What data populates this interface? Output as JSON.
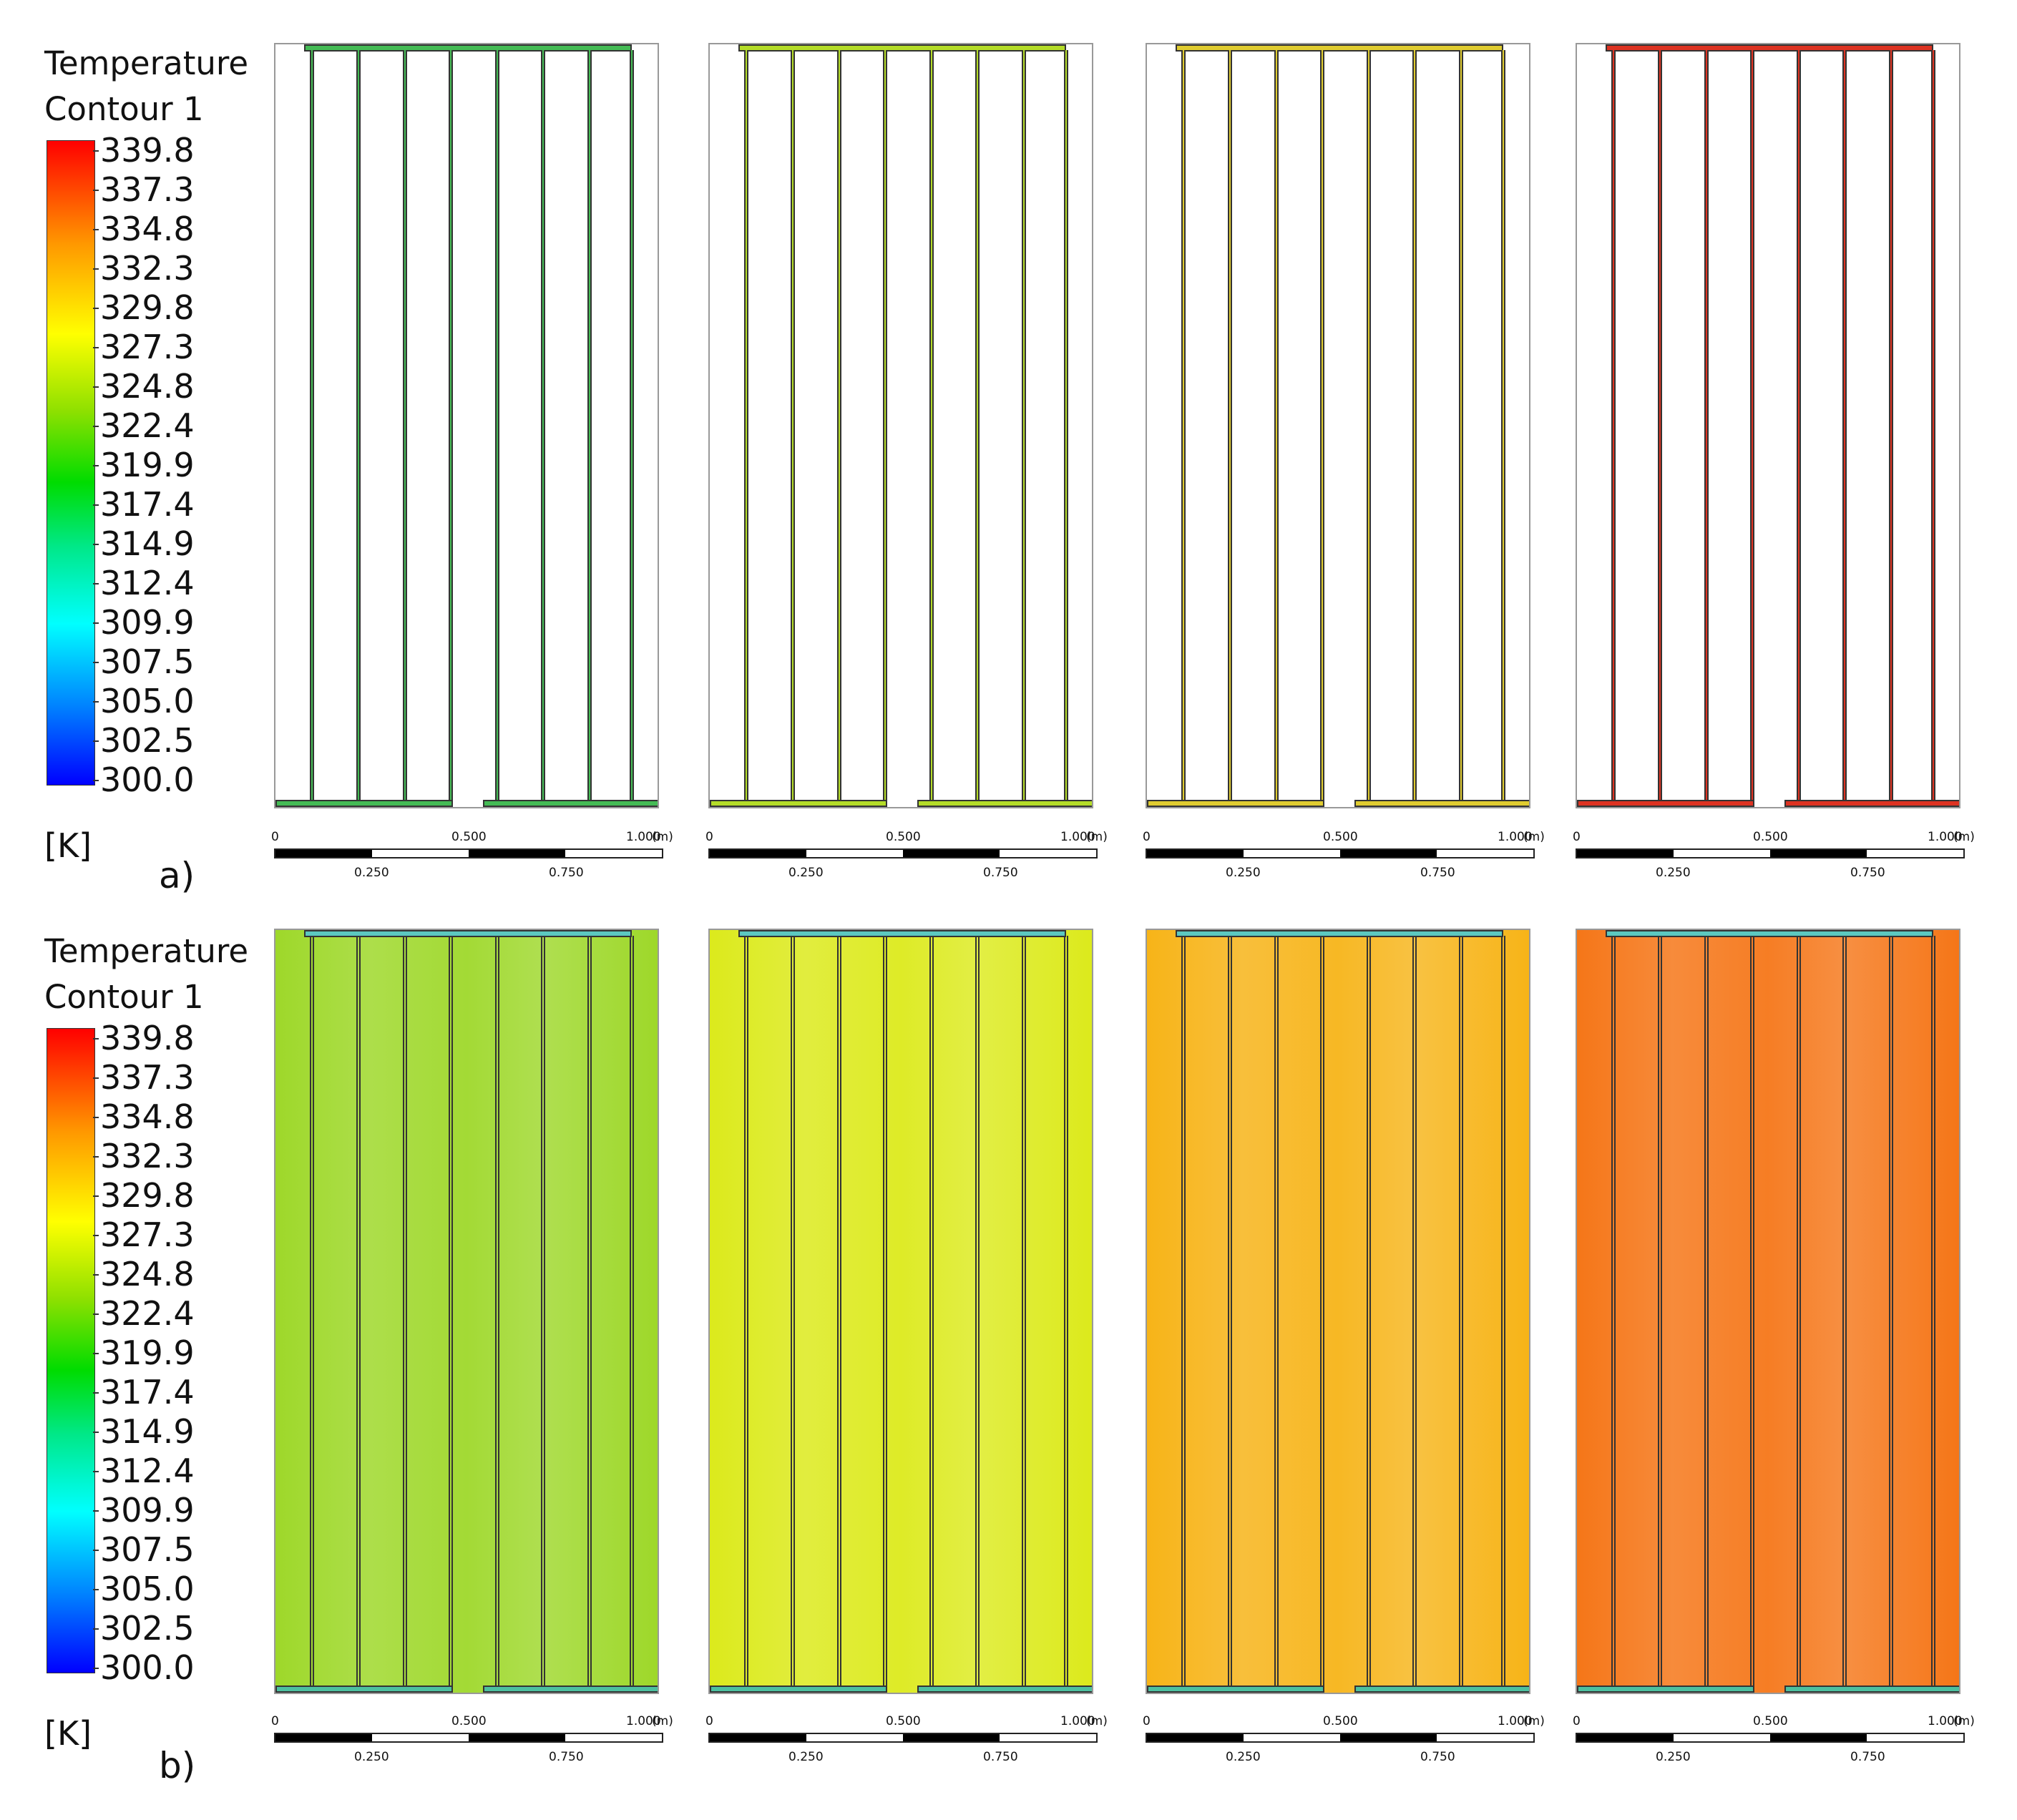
{
  "figure_a": {
    "label": "a)",
    "legend": {
      "title_line1": "Temperature",
      "title_line2": "Contour 1",
      "unit": "[K]"
    },
    "panel_colors": [
      "#44bb55",
      "#b4dc28",
      "#e0cc30",
      "#dd3322"
    ]
  },
  "figure_b": {
    "label": "b)",
    "legend": {
      "title_line1": "Temperature",
      "title_line2": "Contour 1",
      "unit": "[K]"
    },
    "panel_colors": [
      "#9ed82a",
      "#dcea1c",
      "#f7b418",
      "#f57618"
    ]
  },
  "colorbar": {
    "ticks": [
      "339.8",
      "337.3",
      "334.8",
      "332.3",
      "329.8",
      "327.3",
      "324.8",
      "322.4",
      "319.9",
      "317.4",
      "314.9",
      "312.4",
      "309.9",
      "307.5",
      "305.0",
      "302.5",
      "300.0"
    ],
    "min": 300.0,
    "max": 339.8
  },
  "scale_bar": {
    "start": "0",
    "mid": "0.500",
    "end": "1.000",
    "unit": "(m)",
    "q1": "0.250",
    "q3": "0.750"
  }
}
